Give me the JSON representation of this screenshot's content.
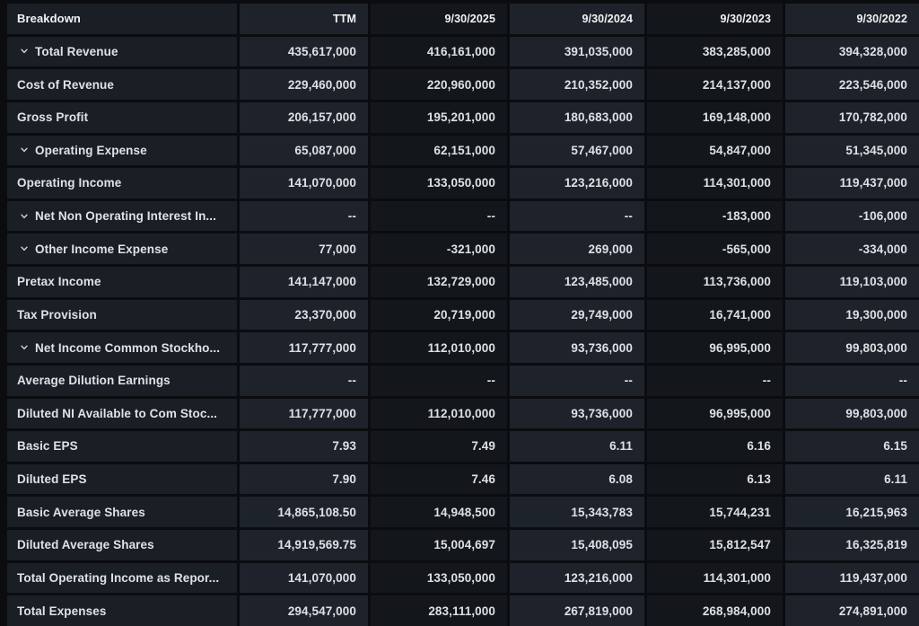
{
  "table": {
    "columns": [
      {
        "label": "Breakdown",
        "align": "left"
      },
      {
        "label": "TTM",
        "align": "right"
      },
      {
        "label": "9/30/2025",
        "align": "right"
      },
      {
        "label": "9/30/2024",
        "align": "right"
      },
      {
        "label": "9/30/2023",
        "align": "right"
      },
      {
        "label": "9/30/2022",
        "align": "right"
      }
    ],
    "rows": [
      {
        "label": "Total Revenue",
        "expandable": true,
        "values": [
          "435,617,000",
          "416,161,000",
          "391,035,000",
          "383,285,000",
          "394,328,000"
        ]
      },
      {
        "label": "Cost of Revenue",
        "expandable": false,
        "values": [
          "229,460,000",
          "220,960,000",
          "210,352,000",
          "214,137,000",
          "223,546,000"
        ]
      },
      {
        "label": "Gross Profit",
        "expandable": false,
        "values": [
          "206,157,000",
          "195,201,000",
          "180,683,000",
          "169,148,000",
          "170,782,000"
        ]
      },
      {
        "label": "Operating Expense",
        "expandable": true,
        "values": [
          "65,087,000",
          "62,151,000",
          "57,467,000",
          "54,847,000",
          "51,345,000"
        ]
      },
      {
        "label": "Operating Income",
        "expandable": false,
        "values": [
          "141,070,000",
          "133,050,000",
          "123,216,000",
          "114,301,000",
          "119,437,000"
        ]
      },
      {
        "label": "Net Non Operating Interest In...",
        "expandable": true,
        "values": [
          "--",
          "--",
          "--",
          "-183,000",
          "-106,000"
        ]
      },
      {
        "label": "Other Income Expense",
        "expandable": true,
        "values": [
          "77,000",
          "-321,000",
          "269,000",
          "-565,000",
          "-334,000"
        ]
      },
      {
        "label": "Pretax Income",
        "expandable": false,
        "values": [
          "141,147,000",
          "132,729,000",
          "123,485,000",
          "113,736,000",
          "119,103,000"
        ]
      },
      {
        "label": "Tax Provision",
        "expandable": false,
        "values": [
          "23,370,000",
          "20,719,000",
          "29,749,000",
          "16,741,000",
          "19,300,000"
        ]
      },
      {
        "label": "Net Income Common Stockho...",
        "expandable": true,
        "values": [
          "117,777,000",
          "112,010,000",
          "93,736,000",
          "96,995,000",
          "99,803,000"
        ]
      },
      {
        "label": "Average Dilution Earnings",
        "expandable": false,
        "values": [
          "--",
          "--",
          "--",
          "--",
          "--"
        ]
      },
      {
        "label": "Diluted NI Available to Com Stoc...",
        "expandable": false,
        "values": [
          "117,777,000",
          "112,010,000",
          "93,736,000",
          "96,995,000",
          "99,803,000"
        ]
      },
      {
        "label": "Basic EPS",
        "expandable": false,
        "values": [
          "7.93",
          "7.49",
          "6.11",
          "6.16",
          "6.15"
        ]
      },
      {
        "label": "Diluted EPS",
        "expandable": false,
        "values": [
          "7.90",
          "7.46",
          "6.08",
          "6.13",
          "6.11"
        ]
      },
      {
        "label": "Basic Average Shares",
        "expandable": false,
        "values": [
          "14,865,108.50",
          "14,948,500",
          "15,343,783",
          "15,744,231",
          "16,215,963"
        ]
      },
      {
        "label": "Diluted Average Shares",
        "expandable": false,
        "values": [
          "14,919,569.75",
          "15,004,697",
          "15,408,095",
          "15,812,547",
          "16,325,819"
        ]
      },
      {
        "label": "Total Operating Income as Repor...",
        "expandable": false,
        "values": [
          "141,070,000",
          "133,050,000",
          "123,216,000",
          "114,301,000",
          "119,437,000"
        ]
      },
      {
        "label": "Total Expenses",
        "expandable": false,
        "values": [
          "294,547,000",
          "283,111,000",
          "267,819,000",
          "268,984,000",
          "274,891,000"
        ]
      }
    ],
    "empty_value_placeholder": "--"
  },
  "icons": {
    "expand_chevron": "chevron-down-icon"
  },
  "colors": {
    "page_background": "#0a0c0f",
    "grid_line": "#0a0c0f",
    "label_column_background": "#1a1e25",
    "light_column_background": "#1e232b",
    "dark_column_background": "#13161b",
    "header_text": "#f0f2f4",
    "cell_text": "#dde0e4",
    "chevron": "#d3d6d9"
  }
}
